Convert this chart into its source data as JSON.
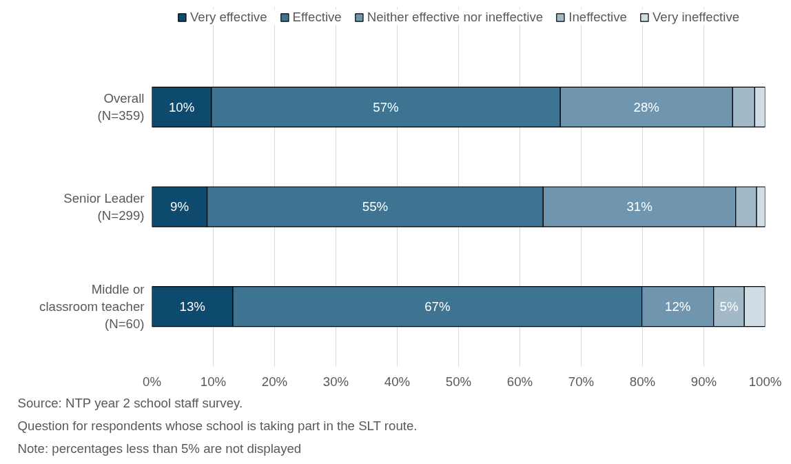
{
  "chart_data": {
    "type": "bar",
    "orientation": "horizontal",
    "stacked": true,
    "categories": [
      "Overall\n(N=359)",
      "Senior Leader\n(N=299)",
      "Middle or\nclassroom teacher\n(N=60)"
    ],
    "series": [
      {
        "name": "Very effective",
        "color": "#0e4a6e",
        "values": [
          9.7,
          9.0,
          13.2
        ],
        "value_labels": [
          "10%",
          "9%",
          "13%"
        ]
      },
      {
        "name": "Effective",
        "color": "#3e7391",
        "values": [
          56.9,
          54.8,
          66.7
        ],
        "value_labels": [
          "57%",
          "55%",
          "67%"
        ]
      },
      {
        "name": "Neither effective nor ineffective",
        "color": "#6f96ae",
        "values": [
          28.1,
          31.4,
          11.7
        ],
        "value_labels": [
          "28%",
          "31%",
          "12%"
        ]
      },
      {
        "name": "Ineffective",
        "color": "#a2b9c8",
        "values": [
          3.6,
          3.4,
          5.0
        ],
        "value_labels": [
          null,
          null,
          "5%"
        ]
      },
      {
        "name": "Very ineffective",
        "color": "#d0dde5",
        "values": [
          1.7,
          1.4,
          3.4
        ],
        "value_labels": [
          null,
          null,
          null
        ]
      }
    ],
    "xlim": [
      0,
      100
    ],
    "xticks": [
      {
        "value": 0,
        "label": "0%"
      },
      {
        "value": 10,
        "label": "10%"
      },
      {
        "value": 20,
        "label": "20%"
      },
      {
        "value": 30,
        "label": "30%"
      },
      {
        "value": 40,
        "label": "40%"
      },
      {
        "value": 50,
        "label": "50%"
      },
      {
        "value": 60,
        "label": "60%"
      },
      {
        "value": 70,
        "label": "70%"
      },
      {
        "value": 80,
        "label": "80%"
      },
      {
        "value": 90,
        "label": "90%"
      },
      {
        "value": 100,
        "label": "100%"
      }
    ],
    "grid": "x",
    "legend": "top",
    "annotations": [
      "Source: NTP year 2 school staff survey.",
      "Question for respondents whose school is taking part in the SLT route.",
      "Note: percentages less than 5% are not displayed"
    ]
  }
}
